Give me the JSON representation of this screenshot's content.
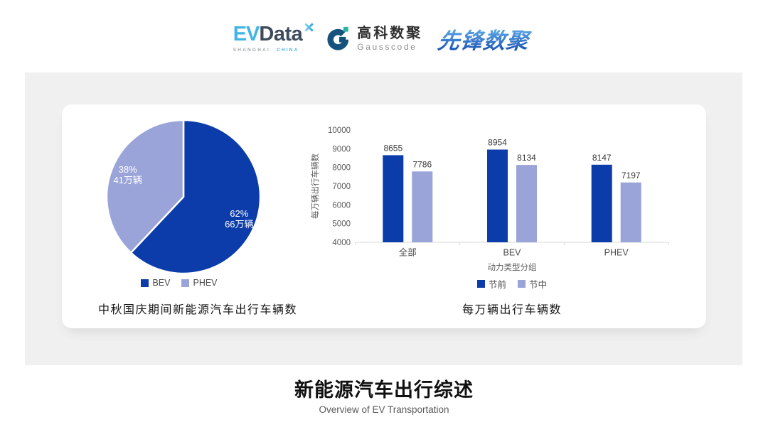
{
  "header": {
    "evdata": {
      "ev": "EV",
      "data": "Data",
      "mark_icon": "x-spark-icon",
      "sub_left": "SHANGHAI",
      "sub_right": "CHINA"
    },
    "gausscode": {
      "icon": "gausscode-g-icon",
      "cn": "高科数聚",
      "en": "Gausscode"
    },
    "pioneer": {
      "text": "先锋数聚"
    }
  },
  "chart_data": [
    {
      "type": "pie",
      "title": "中秋国庆期间新能源汽车出行车辆数",
      "labels": [
        "BEV",
        "PHEV"
      ],
      "values": [
        62,
        38
      ],
      "percent_labels": [
        "62%",
        "38%"
      ],
      "unit_labels": [
        "66万辆",
        "41万辆"
      ],
      "colors": [
        "#0c3caa",
        "#9aa4d8"
      ],
      "start_angle": "top",
      "direction": "clockwise",
      "legend_position": "bottom"
    },
    {
      "type": "bar",
      "title": "每万辆出行车辆数",
      "categories": [
        "全部",
        "BEV",
        "PHEV"
      ],
      "series": [
        {
          "name": "节前",
          "values": [
            8655,
            8954,
            8147
          ],
          "color": "#0c3caa"
        },
        {
          "name": "节中",
          "values": [
            7786,
            8134,
            7197
          ],
          "color": "#9aa4d8"
        }
      ],
      "xlabel": "动力类型分组",
      "ylabel": "每万辆出行车辆数",
      "ylim": [
        4000,
        10000
      ],
      "ytick_step": 1000,
      "grid": false,
      "legend_position": "bottom"
    }
  ],
  "footer": {
    "title": "新能源汽车出行综述",
    "subtitle": "Overview of EV Transportation"
  },
  "colors": {
    "accent_dark_blue": "#0c3caa",
    "accent_light_purple": "#9aa4d8",
    "panel_bg": "#f0f0f0"
  }
}
